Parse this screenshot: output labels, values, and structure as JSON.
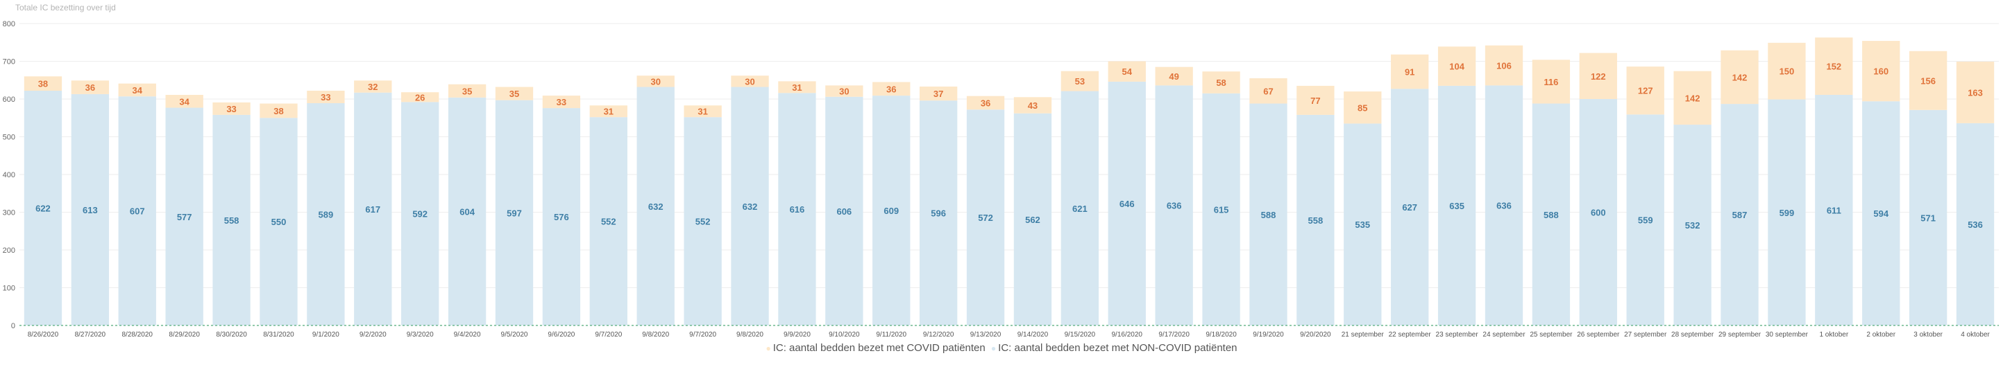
{
  "colors": {
    "non_covid": "#d6e7f1",
    "covid": "#fde7c8",
    "non_covid_label": "#3f7fa6",
    "covid_label": "#e0733a",
    "gridline": "#eeeeee",
    "baseline": "#6fb98f"
  },
  "chart_data": {
    "type": "bar",
    "stacked": true,
    "title": "Totale IC bezetting over tijd",
    "xlabel": "",
    "ylabel": "",
    "ylim": [
      0,
      800
    ],
    "yticks": [
      0,
      100,
      200,
      300,
      400,
      500,
      600,
      700,
      800
    ],
    "grid": true,
    "legend_position": "bottom",
    "categories": [
      "8/26/2020",
      "8/27/2020",
      "8/28/2020",
      "8/29/2020",
      "8/30/2020",
      "8/31/2020",
      "9/1/2020",
      "9/2/2020",
      "9/3/2020",
      "9/4/2020",
      "9/5/2020",
      "9/6/2020",
      "9/7/2020",
      "9/8/2020",
      "9/7/2020",
      "9/8/2020",
      "9/9/2020",
      "9/10/2020",
      "9/11/2020",
      "9/12/2020",
      "9/13/2020",
      "9/14/2020",
      "9/15/2020",
      "9/16/2020",
      "9/17/2020",
      "9/18/2020",
      "9/19/2020",
      "9/20/2020",
      "21 september",
      "22 september",
      "23 september",
      "24 september",
      "25 september",
      "26 september",
      "27 september",
      "28 september",
      "29 september",
      "30 september",
      "1 oktober",
      "2 oktober",
      "3 oktober",
      "4 oktober"
    ],
    "series": [
      {
        "name": "IC: aantal bedden bezet met COVID patiënten",
        "values": [
          38,
          36,
          34,
          34,
          33,
          38,
          33,
          32,
          26,
          35,
          35,
          33,
          31,
          30,
          31,
          30,
          31,
          30,
          36,
          37,
          36,
          43,
          53,
          54,
          49,
          58,
          67,
          77,
          85,
          91,
          104,
          106,
          116,
          122,
          127,
          142,
          142,
          150,
          152,
          160,
          156,
          163
        ]
      },
      {
        "name": "IC: aantal bedden bezet met NON-COVID patiënten",
        "values": [
          622,
          613,
          607,
          577,
          558,
          550,
          589,
          617,
          592,
          604,
          597,
          576,
          552,
          632,
          552,
          632,
          616,
          606,
          609,
          596,
          572,
          562,
          621,
          646,
          636,
          615,
          588,
          558,
          535,
          627,
          635,
          636,
          588,
          600,
          559,
          532,
          587,
          599,
          611,
          594,
          571,
          536
        ]
      }
    ]
  }
}
